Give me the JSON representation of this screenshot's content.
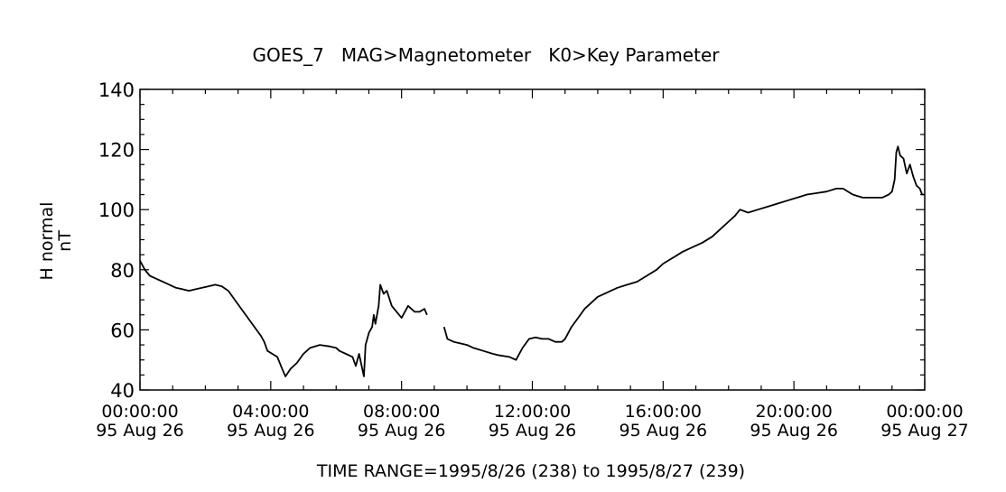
{
  "chart_data": {
    "type": "line",
    "title": "GOES_7   MAG>Magnetometer   K0>Key Parameter",
    "ylabel_line1": "H normal",
    "ylabel_line2": "nT",
    "xlabel": "TIME RANGE=1995/8/26 (238) to 1995/8/27 (239)",
    "ylim": [
      40,
      140
    ],
    "xlim_hours": [
      0,
      24
    ],
    "yticks": [
      40,
      60,
      80,
      100,
      120,
      140
    ],
    "xticks": [
      {
        "hour": 0,
        "time": "00:00:00",
        "date": "95 Aug 26"
      },
      {
        "hour": 4,
        "time": "04:00:00",
        "date": "95 Aug 26"
      },
      {
        "hour": 8,
        "time": "08:00:00",
        "date": "95 Aug 26"
      },
      {
        "hour": 12,
        "time": "12:00:00",
        "date": "95 Aug 26"
      },
      {
        "hour": 16,
        "time": "16:00:00",
        "date": "95 Aug 26"
      },
      {
        "hour": 20,
        "time": "20:00:00",
        "date": "95 Aug 26"
      },
      {
        "hour": 24,
        "time": "00:00:00",
        "date": "95 Aug 27"
      }
    ],
    "grid": false,
    "series": [
      {
        "color": "#000000",
        "segments": [
          [
            [
              0.0,
              83
            ],
            [
              0.15,
              80
            ],
            [
              0.3,
              78
            ],
            [
              0.5,
              77
            ],
            [
              0.7,
              76
            ],
            [
              0.9,
              75
            ],
            [
              1.1,
              74
            ],
            [
              1.3,
              73.5
            ],
            [
              1.5,
              73
            ],
            [
              1.7,
              73.5
            ],
            [
              1.9,
              74
            ],
            [
              2.1,
              74.5
            ],
            [
              2.3,
              75
            ],
            [
              2.5,
              74.5
            ],
            [
              2.7,
              73
            ],
            [
              2.9,
              70
            ],
            [
              3.1,
              67
            ],
            [
              3.3,
              64
            ],
            [
              3.5,
              61
            ],
            [
              3.7,
              58
            ],
            [
              3.8,
              56
            ],
            [
              3.9,
              53
            ],
            [
              4.05,
              52
            ],
            [
              4.2,
              51
            ],
            [
              4.35,
              47
            ],
            [
              4.45,
              44.5
            ],
            [
              4.6,
              47
            ],
            [
              4.8,
              49
            ],
            [
              5.0,
              52
            ],
            [
              5.2,
              54
            ],
            [
              5.5,
              55
            ],
            [
              5.8,
              54.5
            ],
            [
              6.0,
              54
            ],
            [
              6.1,
              53
            ],
            [
              6.3,
              52
            ],
            [
              6.5,
              51
            ],
            [
              6.6,
              48
            ],
            [
              6.7,
              52
            ],
            [
              6.85,
              44.5
            ],
            [
              6.9,
              55
            ],
            [
              7.0,
              59
            ],
            [
              7.1,
              61
            ],
            [
              7.15,
              65
            ],
            [
              7.2,
              62
            ],
            [
              7.3,
              68
            ],
            [
              7.35,
              75
            ],
            [
              7.45,
              72
            ],
            [
              7.55,
              73
            ],
            [
              7.7,
              68
            ],
            [
              7.85,
              66
            ],
            [
              8.0,
              64
            ],
            [
              8.2,
              68
            ],
            [
              8.4,
              66
            ],
            [
              8.55,
              66
            ],
            [
              8.7,
              67
            ],
            [
              8.78,
              65
            ]
          ],
          [
            [
              9.3,
              61
            ],
            [
              9.4,
              57
            ],
            [
              9.6,
              56
            ],
            [
              9.8,
              55.5
            ],
            [
              10.0,
              55
            ],
            [
              10.2,
              54
            ],
            [
              10.5,
              53
            ],
            [
              10.8,
              52
            ],
            [
              11.0,
              51.5
            ],
            [
              11.3,
              51
            ],
            [
              11.5,
              50
            ],
            [
              11.7,
              54
            ],
            [
              11.9,
              57
            ],
            [
              12.1,
              57.5
            ],
            [
              12.3,
              57
            ],
            [
              12.5,
              57
            ],
            [
              12.7,
              56
            ],
            [
              12.9,
              56
            ],
            [
              13.0,
              57
            ],
            [
              13.2,
              61
            ],
            [
              13.4,
              64
            ],
            [
              13.6,
              67
            ],
            [
              13.8,
              69
            ],
            [
              14.0,
              71
            ],
            [
              14.3,
              72.5
            ],
            [
              14.6,
              74
            ],
            [
              14.9,
              75
            ],
            [
              15.2,
              76
            ],
            [
              15.5,
              78
            ],
            [
              15.8,
              80
            ],
            [
              16.0,
              82
            ],
            [
              16.3,
              84
            ],
            [
              16.6,
              86
            ],
            [
              16.9,
              87.5
            ],
            [
              17.2,
              89
            ],
            [
              17.5,
              91
            ],
            [
              17.8,
              94
            ],
            [
              18.0,
              96
            ],
            [
              18.2,
              98
            ],
            [
              18.35,
              100
            ],
            [
              18.6,
              99
            ],
            [
              18.9,
              100
            ],
            [
              19.2,
              101
            ],
            [
              19.5,
              102
            ],
            [
              19.8,
              103
            ],
            [
              20.1,
              104
            ],
            [
              20.4,
              105
            ],
            [
              20.7,
              105.5
            ],
            [
              21.0,
              106
            ],
            [
              21.3,
              107
            ],
            [
              21.5,
              107
            ],
            [
              21.8,
              105
            ],
            [
              22.1,
              104
            ],
            [
              22.4,
              104
            ],
            [
              22.7,
              104
            ],
            [
              22.9,
              105
            ],
            [
              23.0,
              106
            ],
            [
              23.08,
              110
            ],
            [
              23.13,
              119
            ],
            [
              23.18,
              121
            ],
            [
              23.25,
              118
            ],
            [
              23.35,
              117
            ],
            [
              23.45,
              112
            ],
            [
              23.55,
              115
            ],
            [
              23.65,
              111
            ],
            [
              23.75,
              108
            ],
            [
              23.85,
              107
            ],
            [
              23.92,
              105
            ],
            [
              24.0,
              105
            ]
          ]
        ]
      }
    ]
  }
}
